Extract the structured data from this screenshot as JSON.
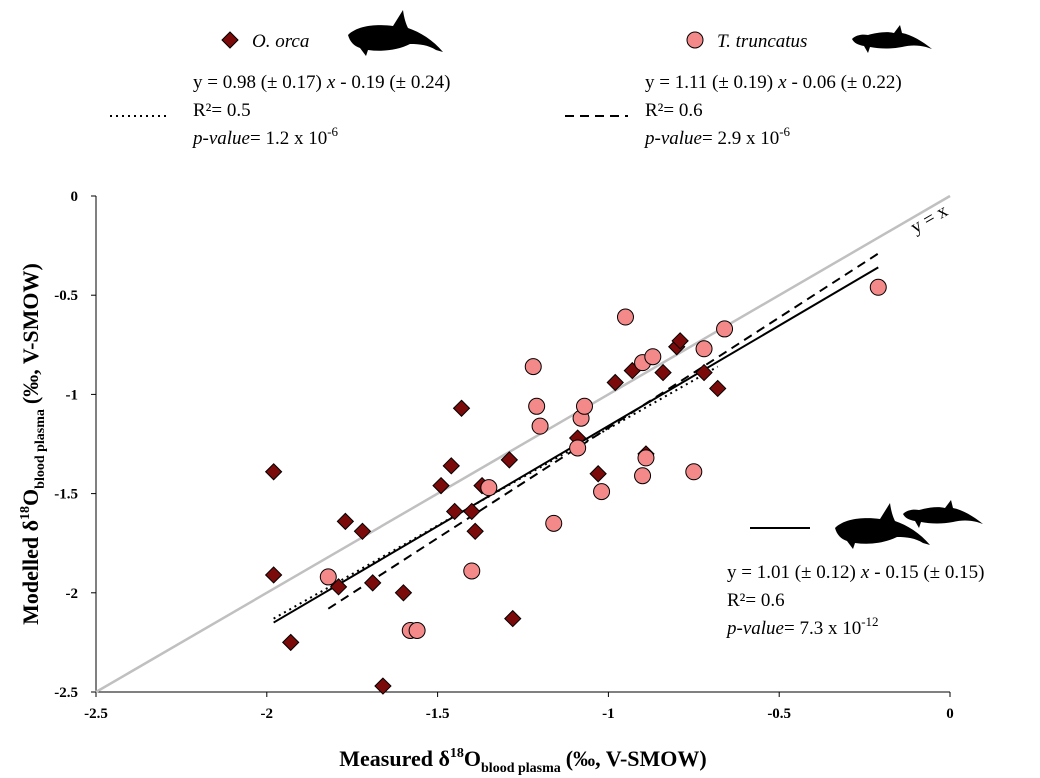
{
  "chart_data": {
    "type": "scatter",
    "x_label": {
      "pre": "Measured δ",
      "sup": "18",
      "mid": "O",
      "sub": "blood plasma",
      "post": "(‰, V-SMOW)"
    },
    "y_label": {
      "pre": "Modelled δ",
      "sup": "18",
      "mid": "O",
      "sub": "blood plasma",
      "post": "(‰, V-SMOW)"
    },
    "xlim": [
      -2.5,
      0
    ],
    "ylim": [
      -2.5,
      0
    ],
    "xticks": [
      -2.5,
      -2,
      -1.5,
      -1,
      -0.5,
      0
    ],
    "yticks": [
      -2.5,
      -2,
      -1.5,
      -1,
      -0.5,
      0
    ],
    "series": [
      {
        "name": "O. orca",
        "marker": "diamond",
        "color": "#7b0a0a",
        "x": [
          -1.98,
          -1.98,
          -1.93,
          -1.77,
          -1.72,
          -1.79,
          -1.69,
          -1.6,
          -1.66,
          -1.49,
          -1.46,
          -1.43,
          -1.45,
          -1.4,
          -1.39,
          -1.37,
          -1.29,
          -1.28,
          -1.09,
          -1.03,
          -0.98,
          -0.93,
          -0.89,
          -0.84,
          -0.8,
          -0.79,
          -0.72,
          -0.68
        ],
        "values": [
          -1.39,
          -1.91,
          -2.25,
          -1.64,
          -1.69,
          -1.97,
          -1.95,
          -2.0,
          -2.47,
          -1.46,
          -1.36,
          -1.07,
          -1.59,
          -1.59,
          -1.69,
          -1.46,
          -1.33,
          -2.13,
          -1.22,
          -1.4,
          -0.94,
          -0.88,
          -1.3,
          -0.89,
          -0.76,
          -0.73,
          -0.89,
          -0.97
        ]
      },
      {
        "name": "T. truncatus",
        "marker": "circle",
        "color": "#f4898a",
        "x": [
          -1.82,
          -1.58,
          -1.56,
          -1.4,
          -1.35,
          -1.22,
          -1.21,
          -1.2,
          -1.16,
          -1.09,
          -1.08,
          -1.07,
          -1.02,
          -0.95,
          -0.9,
          -0.87,
          -0.89,
          -0.9,
          -0.75,
          -0.72,
          -0.66,
          -0.21
        ],
        "values": [
          -1.92,
          -2.19,
          -2.19,
          -1.89,
          -1.47,
          -0.86,
          -1.06,
          -1.16,
          -1.65,
          -1.27,
          -1.12,
          -1.06,
          -1.49,
          -0.61,
          -0.84,
          -0.81,
          -1.32,
          -1.41,
          -1.39,
          -0.77,
          -0.67,
          -0.46
        ]
      }
    ],
    "lines": [
      {
        "style": "solid",
        "color": "#c0c0c0",
        "label": "y = x",
        "x": [
          -2.5,
          0
        ],
        "values": [
          -2.5,
          0
        ]
      },
      {
        "style": "dotted",
        "color": "#000000",
        "x": [
          -1.98,
          -0.68
        ],
        "values": [
          -2.13,
          -0.86
        ],
        "equation": {
          "pre": "y = 0.98 (± 0.17)",
          "var": "x",
          "post": "- 0.19 (± 0.24)",
          "r2": "R²= 0.5",
          "p_name": "p-value",
          "p_text": "= 1.2 x 10",
          "p_exp": "-6"
        }
      },
      {
        "style": "dashed",
        "color": "#000000",
        "x": [
          -1.82,
          -0.21
        ],
        "values": [
          -2.08,
          -0.29
        ],
        "equation": {
          "pre": "y = 1.11 (± 0.19)",
          "var": "x",
          "post": "- 0.06 (± 0.22)",
          "r2": "R²= 0.6",
          "p_name": "p-value",
          "p_text": "= 2.9 x 10",
          "p_exp": "-6"
        }
      },
      {
        "style": "solid",
        "color": "#000000",
        "x": [
          -1.98,
          -0.21
        ],
        "values": [
          -2.15,
          -0.36
        ],
        "equation": {
          "pre": "y = 1.01 (± 0.12)",
          "var": "x",
          "post": "- 0.15 (± 0.15)",
          "r2": "R²= 0.6",
          "p_name": "p-value",
          "p_text": "= 7.3 x 10",
          "p_exp": "-12"
        }
      }
    ]
  }
}
